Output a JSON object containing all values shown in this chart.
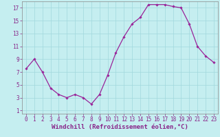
{
  "x": [
    0,
    1,
    2,
    3,
    4,
    5,
    6,
    7,
    8,
    9,
    10,
    11,
    12,
    13,
    14,
    15,
    16,
    17,
    18,
    19,
    20,
    21,
    22,
    23
  ],
  "y": [
    7.5,
    9.0,
    7.0,
    4.5,
    3.5,
    3.0,
    3.5,
    3.0,
    2.0,
    3.5,
    6.5,
    10.0,
    12.5,
    14.5,
    15.5,
    17.5,
    17.5,
    17.5,
    17.2,
    17.0,
    14.5,
    11.0,
    9.5,
    8.5
  ],
  "line_color": "#992299",
  "marker": "D",
  "marker_size": 1.8,
  "line_width": 0.9,
  "xlabel": "Windchill (Refroidissement éolien,°C)",
  "ylabel_ticks": [
    1,
    3,
    5,
    7,
    9,
    11,
    13,
    15,
    17
  ],
  "xlim": [
    -0.5,
    23.5
  ],
  "ylim": [
    0.5,
    18.0
  ],
  "background_color": "#c5eef0",
  "grid_color": "#a0d8dc",
  "tick_fontsize": 5.5,
  "xlabel_fontsize": 6.5,
  "tick_color": "#882288"
}
